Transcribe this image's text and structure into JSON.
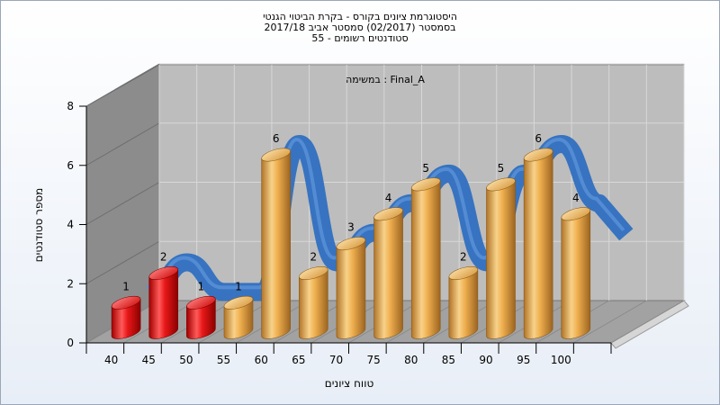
{
  "chart_data": {
    "type": "bar",
    "title_lines": [
      "היסטוגרמת ציונים בקורס - בקרת הביטוי הגנטי",
      "בסמסטר  (02/2017)  סמסטר אביב 2017/18",
      "סטודנטים רשומים - 55"
    ],
    "subtitle": "במשימה : Final_A",
    "xlabel": "טווח ציונים",
    "ylabel": "מספר סטודנטים",
    "categories": [
      "40",
      "45",
      "50",
      "55",
      "60",
      "65",
      "70",
      "75",
      "80",
      "85",
      "90",
      "95",
      "100"
    ],
    "values": [
      1,
      2,
      1,
      1,
      6,
      2,
      3,
      4,
      5,
      2,
      5,
      6,
      4
    ],
    "bar_colors": [
      "red",
      "red",
      "red",
      "gold",
      "gold",
      "gold",
      "gold",
      "gold",
      "gold",
      "gold",
      "gold",
      "gold",
      "gold"
    ],
    "ylim": [
      0,
      8
    ],
    "yticks": [
      0,
      2,
      4,
      6,
      8
    ],
    "grid": true,
    "colors": {
      "red": "#e01010",
      "gold": "#e0a040",
      "ribbon": "#2f6fc0",
      "back_wall": "#b8b8b8",
      "side_wall": "#8a8a8a",
      "floor": "#a0a0a0"
    }
  }
}
